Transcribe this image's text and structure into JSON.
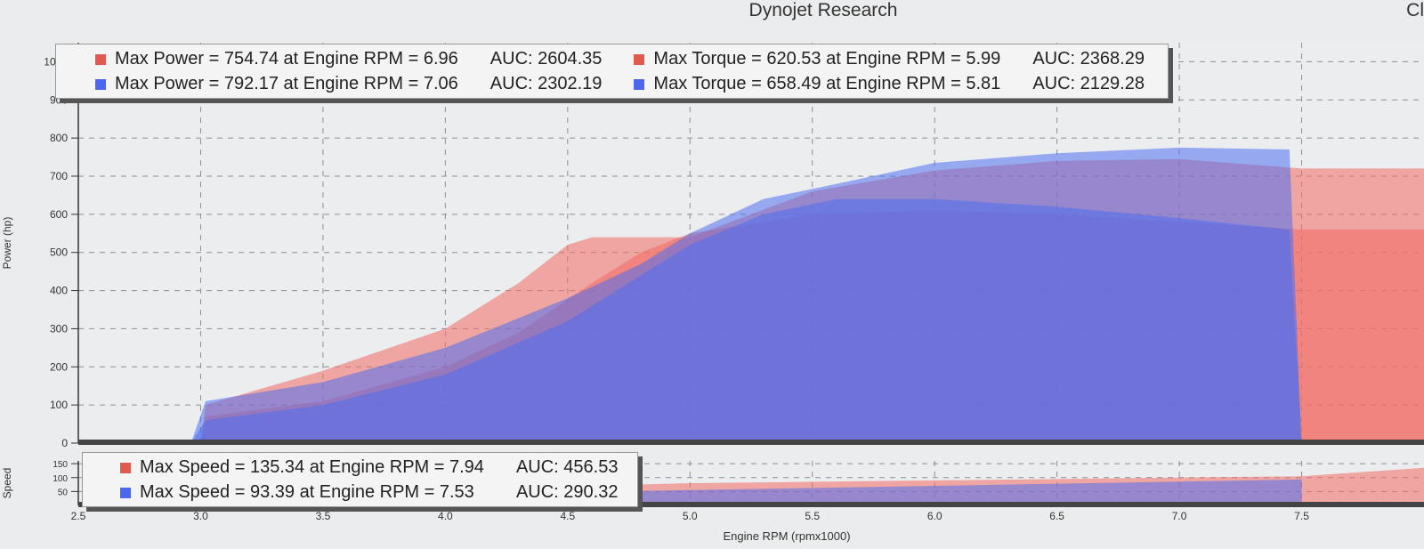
{
  "header": {
    "title": "Dynojet Research",
    "corner_text": "Cl"
  },
  "colors": {
    "run1": "#f26a62",
    "run2": "#4f6ff0",
    "overlap": "#8a4be8",
    "grid": "#8a8f96",
    "plot_bg": "#ecedef"
  },
  "legend_power": [
    {
      "power": "Max Power = 754.74 at Engine RPM = 6.96",
      "power_auc": "AUC: 2604.35",
      "torque": "Max Torque = 620.53 at Engine RPM = 5.99",
      "torque_auc": "AUC: 2368.29",
      "color": "#e05a50"
    },
    {
      "power": "Max Power = 792.17 at Engine RPM = 7.06",
      "power_auc": "AUC: 2302.19",
      "torque": "Max Torque = 658.49 at Engine RPM = 5.81",
      "torque_auc": "AUC: 2129.28",
      "color": "#4d66ee"
    }
  ],
  "legend_speed": [
    {
      "text": "Max Speed = 135.34 at Engine RPM = 7.94",
      "auc": "AUC: 456.53",
      "color": "#e05a50"
    },
    {
      "text": "Max Speed = 93.39 at Engine RPM = 7.53",
      "auc": "AUC: 290.32",
      "color": "#4d66ee"
    }
  ],
  "chart_data": {
    "type": "area",
    "xlabel": "Engine RPM (rpmx1000)",
    "x_ticks": [
      "2.5",
      "3.0",
      "3.5",
      "4.0",
      "4.5",
      "5.0",
      "5.5",
      "6.0",
      "6.5",
      "7.0",
      "7.5"
    ],
    "xlim": [
      2.5,
      8.0
    ],
    "power_panel": {
      "ylabel": "Power (hp)",
      "ylim": [
        0,
        1050
      ],
      "y_ticks": [
        "0",
        "100",
        "200",
        "300",
        "400",
        "500",
        "600",
        "700",
        "800",
        "900",
        "1000"
      ],
      "series": [
        {
          "color": "run1",
          "points": [
            [
              3.0,
              0
            ],
            [
              3.02,
              100
            ],
            [
              3.5,
              190
            ],
            [
              4.0,
              300
            ],
            [
              4.3,
              420
            ],
            [
              4.5,
              520
            ],
            [
              4.6,
              540
            ],
            [
              5.0,
              540
            ],
            [
              5.5,
              660
            ],
            [
              6.0,
              715
            ],
            [
              6.5,
              740
            ],
            [
              7.0,
              745
            ],
            [
              7.5,
              720
            ],
            [
              8.0,
              720
            ],
            [
              8.0,
              0
            ]
          ]
        },
        {
          "color": "run1",
          "points": [
            [
              3.0,
              0
            ],
            [
              3.02,
              70
            ],
            [
              3.5,
              110
            ],
            [
              4.0,
              200
            ],
            [
              4.3,
              290
            ],
            [
              4.6,
              420
            ],
            [
              4.8,
              500
            ],
            [
              5.0,
              550
            ],
            [
              5.5,
              600
            ],
            [
              6.0,
              610
            ],
            [
              6.5,
              600
            ],
            [
              7.0,
              580
            ],
            [
              7.5,
              560
            ],
            [
              8.0,
              560
            ],
            [
              8.0,
              0
            ]
          ]
        },
        {
          "color": "run2",
          "points": [
            [
              2.96,
              0
            ],
            [
              3.02,
              110
            ],
            [
              3.5,
              160
            ],
            [
              4.0,
              250
            ],
            [
              4.5,
              380
            ],
            [
              4.8,
              470
            ],
            [
              5.0,
              550
            ],
            [
              5.3,
              640
            ],
            [
              5.6,
              680
            ],
            [
              6.0,
              735
            ],
            [
              6.5,
              760
            ],
            [
              7.0,
              775
            ],
            [
              7.45,
              770
            ],
            [
              7.5,
              0
            ]
          ]
        },
        {
          "color": "run2",
          "points": [
            [
              2.96,
              0
            ],
            [
              3.02,
              60
            ],
            [
              3.5,
              100
            ],
            [
              4.0,
              180
            ],
            [
              4.5,
              320
            ],
            [
              4.8,
              440
            ],
            [
              5.0,
              520
            ],
            [
              5.3,
              600
            ],
            [
              5.6,
              640
            ],
            [
              6.0,
              640
            ],
            [
              6.5,
              620
            ],
            [
              7.0,
              590
            ],
            [
              7.45,
              560
            ],
            [
              7.5,
              0
            ]
          ]
        }
      ]
    },
    "speed_panel": {
      "ylabel": "Speed",
      "ylim": [
        0,
        160
      ],
      "y_ticks": [
        "50",
        "100",
        "150"
      ],
      "series": [
        {
          "color": "run1",
          "points": [
            [
              3.0,
              0
            ],
            [
              3.0,
              35
            ],
            [
              5.0,
              80
            ],
            [
              7.5,
              105
            ],
            [
              8.0,
              135
            ],
            [
              8.0,
              0
            ]
          ]
        },
        {
          "color": "run2",
          "points": [
            [
              2.96,
              0
            ],
            [
              3.0,
              25
            ],
            [
              5.0,
              55
            ],
            [
              7.5,
              93
            ],
            [
              7.5,
              0
            ]
          ]
        }
      ]
    }
  }
}
